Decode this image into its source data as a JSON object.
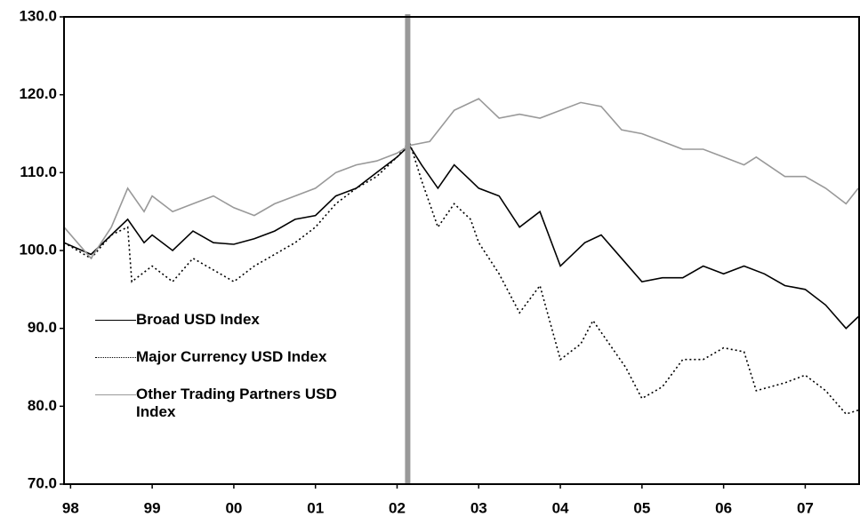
{
  "chart_data": {
    "type": "line",
    "xlim": [
      1997.92,
      2007.66
    ],
    "xticks": [
      {
        "value": 1998,
        "label": "98"
      },
      {
        "value": 1999,
        "label": "99"
      },
      {
        "value": 2000,
        "label": "00"
      },
      {
        "value": 2001,
        "label": "01"
      },
      {
        "value": 2002,
        "label": "02"
      },
      {
        "value": 2003,
        "label": "03"
      },
      {
        "value": 2004,
        "label": "04"
      },
      {
        "value": 2005,
        "label": "05"
      },
      {
        "value": 2006,
        "label": "06"
      },
      {
        "value": 2007,
        "label": "07"
      }
    ],
    "ylim": [
      70,
      130
    ],
    "yticks": [
      {
        "value": 70,
        "label": "70.0"
      },
      {
        "value": 80,
        "label": "80.0"
      },
      {
        "value": 90,
        "label": "90.0"
      },
      {
        "value": 100,
        "label": "100.0"
      },
      {
        "value": 110,
        "label": "110.0"
      },
      {
        "value": 120,
        "label": "120.0"
      },
      {
        "value": 130,
        "label": "130.0"
      }
    ],
    "vline": 2002.13,
    "vline_color": "#999999",
    "legend": "left",
    "series": [
      {
        "name": "Broad USD Index",
        "color": "#000000",
        "dash": "solid",
        "x": [
          1997.92,
          1998.25,
          1998.5,
          1998.7,
          1998.9,
          1999.0,
          1999.25,
          1999.5,
          1999.75,
          2000.0,
          2000.25,
          2000.5,
          2000.75,
          2001.0,
          2001.25,
          2001.5,
          2001.75,
          2002.0,
          2002.15,
          2002.3,
          2002.5,
          2002.7,
          2002.9,
          2003.0,
          2003.25,
          2003.5,
          2003.75,
          2004.0,
          2004.3,
          2004.5,
          2004.75,
          2005.0,
          2005.25,
          2005.5,
          2005.75,
          2006.0,
          2006.25,
          2006.5,
          2006.75,
          2007.0,
          2007.25,
          2007.5,
          2007.65
        ],
        "values": [
          101,
          99.5,
          102,
          104,
          101,
          102,
          100,
          102.5,
          101,
          100.8,
          101.5,
          102.5,
          104,
          104.5,
          107,
          108,
          110,
          112,
          113.5,
          111,
          108,
          111,
          109,
          108,
          107,
          103,
          105,
          98,
          101,
          102,
          99,
          96,
          96.5,
          96.5,
          98,
          97,
          98,
          97,
          95.5,
          95,
          93,
          90,
          91.5
        ]
      },
      {
        "name": "Major Currency USD Index",
        "color": "#000000",
        "dash": "dotted",
        "x": [
          1997.92,
          1998.25,
          1998.5,
          1998.7,
          1998.75,
          1999.0,
          1999.25,
          1999.5,
          1999.75,
          2000.0,
          2000.25,
          2000.5,
          2000.75,
          2001.0,
          2001.25,
          2001.5,
          2001.75,
          2002.0,
          2002.15,
          2002.3,
          2002.5,
          2002.7,
          2002.9,
          2003.0,
          2003.25,
          2003.5,
          2003.75,
          2004.0,
          2004.25,
          2004.4,
          2004.6,
          2004.8,
          2005.0,
          2005.25,
          2005.5,
          2005.75,
          2006.0,
          2006.25,
          2006.4,
          2006.75,
          2007.0,
          2007.25,
          2007.5,
          2007.65
        ],
        "values": [
          101,
          99,
          102,
          103,
          96,
          98,
          96,
          99,
          97.5,
          96,
          98,
          99.5,
          101,
          103,
          106,
          108,
          109.5,
          112,
          114,
          109,
          103,
          106,
          104,
          101,
          97,
          92,
          95.5,
          86,
          88,
          91,
          88,
          85,
          81,
          82.5,
          86,
          86,
          87.5,
          87,
          82,
          83,
          84,
          82,
          79,
          79.5
        ]
      },
      {
        "name": "Other Trading Partners USD Index",
        "color": "#999999",
        "dash": "solid",
        "x": [
          1997.92,
          1998.25,
          1998.5,
          1998.7,
          1998.9,
          1999.0,
          1999.25,
          1999.5,
          1999.75,
          2000.0,
          2000.25,
          2000.5,
          2000.75,
          2001.0,
          2001.25,
          2001.5,
          2001.75,
          2002.0,
          2002.15,
          2002.4,
          2002.7,
          2003.0,
          2003.25,
          2003.5,
          2003.75,
          2004.0,
          2004.25,
          2004.5,
          2004.75,
          2005.0,
          2005.25,
          2005.5,
          2005.75,
          2006.0,
          2006.25,
          2006.4,
          2006.75,
          2007.0,
          2007.25,
          2007.5,
          2007.65
        ],
        "values": [
          103,
          99,
          103,
          108,
          105,
          107,
          105,
          106,
          107,
          105.5,
          104.5,
          106,
          107,
          108,
          110,
          111,
          111.5,
          112.5,
          113.5,
          114,
          118,
          119.5,
          117,
          117.5,
          117,
          118,
          119,
          118.5,
          115.5,
          115,
          114,
          113,
          113,
          112,
          111,
          112,
          109.5,
          109.5,
          108,
          106,
          108
        ]
      }
    ]
  }
}
